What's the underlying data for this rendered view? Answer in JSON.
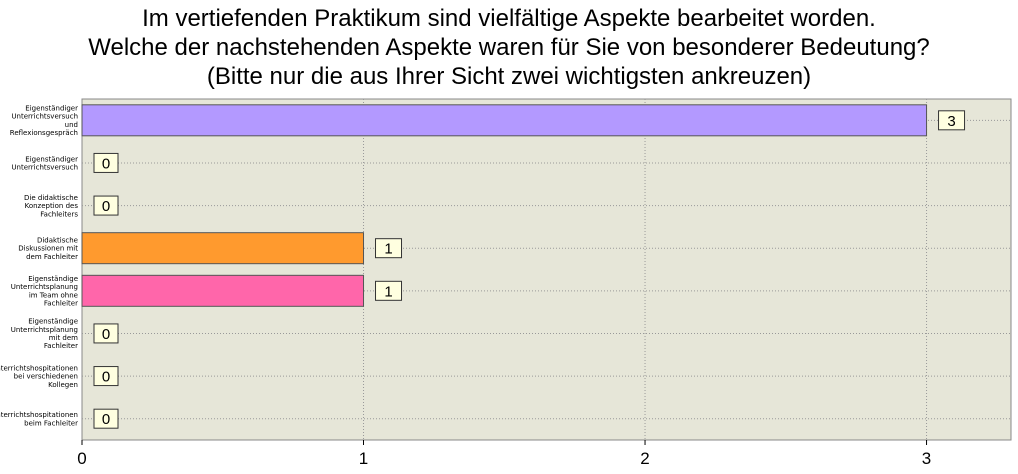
{
  "title": {
    "line1": "Im vertiefenden Praktikum sind vielfältige Aspekte bearbeitet worden.",
    "line2": "Welche der nachstehenden Aspekte waren für Sie von besonderer Bedeutung?",
    "line3": "(Bitte nur die aus Ihrer Sicht zwei wichtigsten ankreuzen)"
  },
  "chart_data": {
    "type": "bar",
    "orientation": "horizontal",
    "categories": [
      [
        "Eigenständiger",
        "Unterrichtsversuch",
        "und",
        "Reflexionsgespräch"
      ],
      [
        "Eigenständiger",
        "Unterrichtsversuch"
      ],
      [
        "Die didaktische",
        "Konzeption des",
        "Fachleiters"
      ],
      [
        "Didaktische",
        "Diskussionen mit",
        "dem Fachleiter"
      ],
      [
        "Eigenständige",
        "Unterrichtsplanung",
        "im Team ohne",
        "Fachleiter"
      ],
      [
        "Eigenständige",
        "Unterrichtsplanung",
        "mit dem",
        "Fachleiter"
      ],
      [
        "Unterrichtshospitationen",
        "bei verschiedenen",
        "Kollegen"
      ],
      [
        "Unterrichtshospitationen",
        "beim Fachleiter"
      ]
    ],
    "values": [
      3,
      0,
      0,
      1,
      1,
      0,
      0,
      0
    ],
    "bar_colors": [
      "#b399ff",
      "#cccccc",
      "#cccccc",
      "#ff9a2e",
      "#ff66aa",
      "#cccccc",
      "#cccccc",
      "#cccccc"
    ],
    "x_ticks": [
      "0",
      "1",
      "2",
      "3"
    ],
    "xlim": [
      0,
      3.3
    ],
    "grid": true,
    "plot_background": "#e6e6d8"
  }
}
